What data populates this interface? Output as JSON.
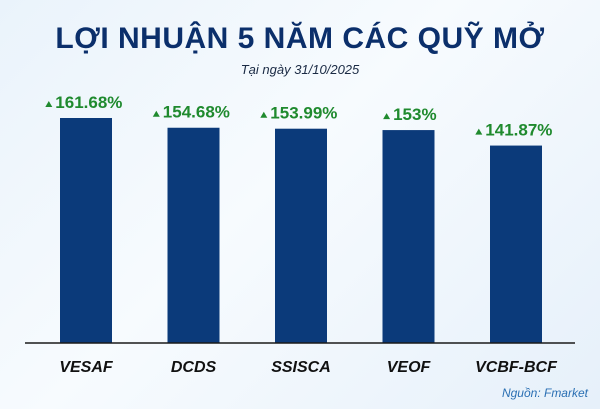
{
  "header": {
    "title": "LỢI NHUẬN 5 NĂM CÁC QUỸ MỞ",
    "subtitle": "Tại ngày 31/10/2025"
  },
  "footer": {
    "source": "Nguồn: Fmarket"
  },
  "colors": {
    "bar": "#0b3a7a",
    "label": "#1f8a2e",
    "axis": "#1a1a1a"
  },
  "chart_data": {
    "type": "bar",
    "title": "LỢI NHUẬN 5 NĂM CÁC QUỸ MỞ",
    "subtitle": "Tại ngày 31/10/2025",
    "categories": [
      "VESAF",
      "DCDS",
      "SSISCA",
      "VEOF",
      "VCBF-BCF"
    ],
    "values": [
      161.68,
      154.68,
      153.99,
      153,
      141.87
    ],
    "value_labels": [
      "161.68%",
      "154.68%",
      "153.99%",
      "153%",
      "141.87%"
    ],
    "ylim": [
      0,
      165
    ],
    "grid": false,
    "legend": "none"
  }
}
